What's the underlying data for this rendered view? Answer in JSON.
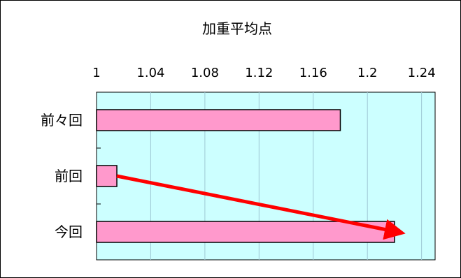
{
  "chart_data": {
    "type": "bar",
    "orientation": "horizontal",
    "title": "加重平均点",
    "categories": [
      "前々回",
      "前回",
      "今回"
    ],
    "values": [
      1.18,
      1.015,
      1.22
    ],
    "xlim": [
      1,
      1.25
    ],
    "xticks": [
      "1",
      "1.04",
      "1.08",
      "1.12",
      "1.16",
      "1.2",
      "1.24"
    ],
    "tick_values": [
      1,
      1.04,
      1.08,
      1.12,
      1.16,
      1.2,
      1.24
    ],
    "x_axis_position": "top",
    "grid": true,
    "legend": "none",
    "colors": {
      "plot_background": "#ccffff",
      "bar_fill": "#ff99cc",
      "bar_stroke": "#000000",
      "grid": "#9ec8d4",
      "arrow": "#ff0000"
    },
    "annotation": {
      "type": "arrow",
      "from_category": "前回",
      "to_category": "今回"
    }
  }
}
